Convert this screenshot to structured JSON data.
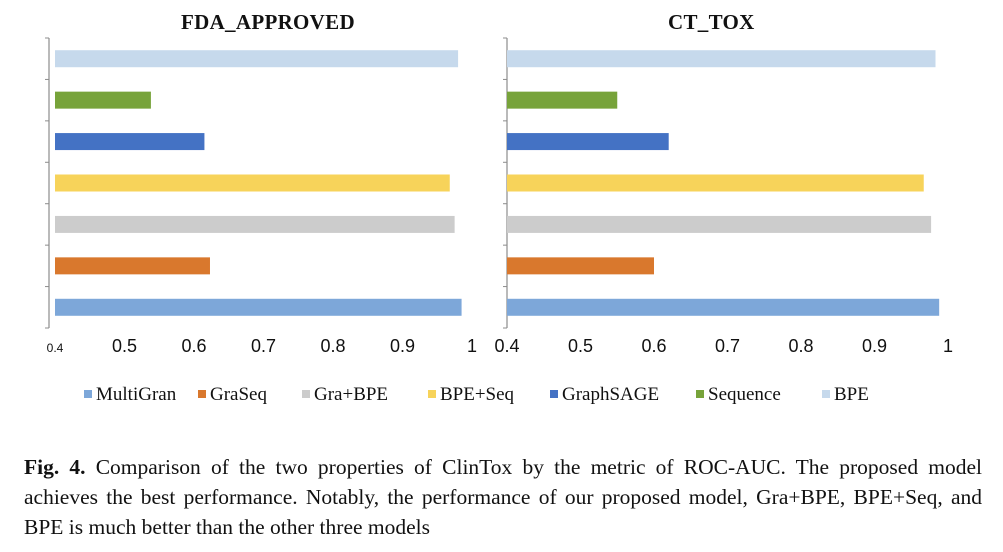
{
  "chart_data": [
    {
      "type": "bar",
      "orientation": "horizontal",
      "title": "FDA_APPROVED",
      "categories": [
        "MultiGran",
        "GraSeq",
        "Gra+BPE",
        "BPE+Seq",
        "GraphSAGE",
        "Sequence",
        "BPE"
      ],
      "values": [
        0.985,
        0.623,
        0.975,
        0.968,
        0.615,
        0.538,
        0.98
      ],
      "xlim": [
        0.4,
        1.0
      ],
      "xticks": [
        "0.4",
        "0.5",
        "0.6",
        "0.7",
        "0.8",
        "0.9",
        "1"
      ],
      "colors": [
        "#7da7d9",
        "#d9782d",
        "#cccccc",
        "#f7d35a",
        "#4472c4",
        "#77a33a",
        "#c6d9ec"
      ],
      "grid": false,
      "legend": "bottom"
    },
    {
      "type": "bar",
      "orientation": "horizontal",
      "title": "CT_TOX",
      "categories": [
        "MultiGran",
        "GraSeq",
        "Gra+BPE",
        "BPE+Seq",
        "GraphSAGE",
        "Sequence",
        "BPE"
      ],
      "values": [
        0.988,
        0.6,
        0.977,
        0.967,
        0.62,
        0.55,
        0.983
      ],
      "xlim": [
        0.4,
        1.0
      ],
      "xticks": [
        "0.4",
        "0.5",
        "0.6",
        "0.7",
        "0.8",
        "0.9",
        "1"
      ],
      "colors": [
        "#7da7d9",
        "#d9782d",
        "#cccccc",
        "#f7d35a",
        "#4472c4",
        "#77a33a",
        "#c6d9ec"
      ],
      "grid": false,
      "legend": "bottom"
    }
  ],
  "legend": {
    "items": [
      {
        "label": "MultiGran",
        "color": "#7da7d9"
      },
      {
        "label": "GraSeq",
        "color": "#d9782d"
      },
      {
        "label": "Gra+BPE",
        "color": "#cccccc"
      },
      {
        "label": "BPE+Seq",
        "color": "#f7d35a"
      },
      {
        "label": "GraphSAGE",
        "color": "#4472c4"
      },
      {
        "label": "Sequence",
        "color": "#77a33a"
      },
      {
        "label": "BPE",
        "color": "#c6d9ec"
      }
    ]
  },
  "caption": {
    "label": "Fig. 4.",
    "text": "Comparison of the two properties of ClinTox by the metric of ROC-AUC. The proposed model achieves the best performance. Notably, the performance of our proposed model, Gra+BPE, BPE+Seq, and BPE is much better than the other three models"
  }
}
